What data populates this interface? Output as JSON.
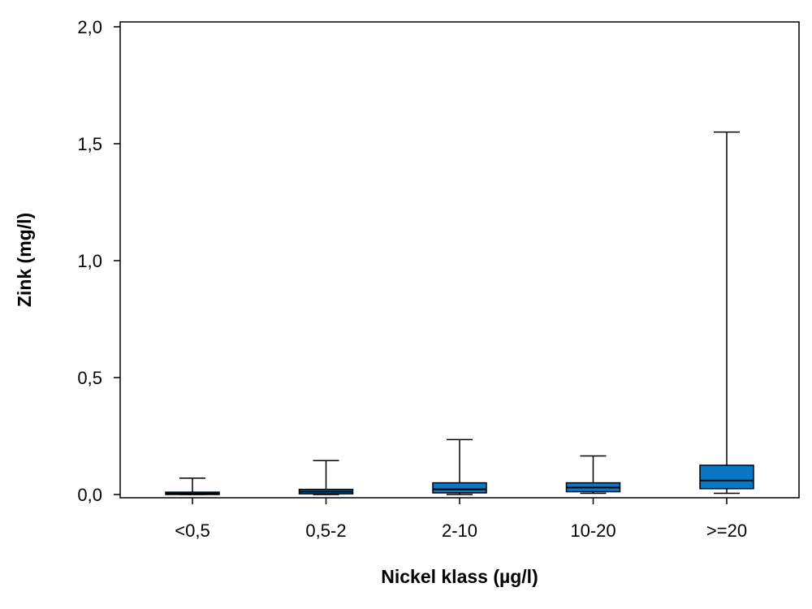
{
  "chart_data": {
    "type": "box",
    "xlabel": "Nickel klass (µg/l)",
    "ylabel": "Zink (mg/l)",
    "ylim": [
      0,
      2.0
    ],
    "y_ticks": [
      {
        "value": 0.0,
        "label": "0,0"
      },
      {
        "value": 0.5,
        "label": "0,5"
      },
      {
        "value": 1.0,
        "label": "1,0"
      },
      {
        "value": 1.5,
        "label": "1,5"
      },
      {
        "value": 2.0,
        "label": "2,0"
      }
    ],
    "categories": [
      "<0,5",
      "0,5-2",
      "2-10",
      "10-20",
      ">=20"
    ],
    "boxes": [
      {
        "category": "<0,5",
        "min": 0.0,
        "q1": 0.0,
        "median": 0.004,
        "q3": 0.01,
        "max": 0.07
      },
      {
        "category": "0,5-2",
        "min": 0.0,
        "q1": 0.003,
        "median": 0.012,
        "q3": 0.022,
        "max": 0.145
      },
      {
        "category": "2-10",
        "min": 0.0,
        "q1": 0.007,
        "median": 0.022,
        "q3": 0.05,
        "max": 0.235
      },
      {
        "category": "10-20",
        "min": 0.005,
        "q1": 0.012,
        "median": 0.03,
        "q3": 0.05,
        "max": 0.165
      },
      {
        "category": ">=20",
        "min": 0.005,
        "q1": 0.025,
        "median": 0.06,
        "q3": 0.125,
        "max": 1.55
      }
    ],
    "box_color": "#0a77c4",
    "grid": false,
    "legend": "none"
  }
}
